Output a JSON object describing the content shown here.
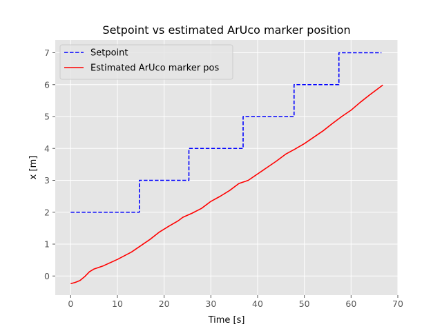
{
  "chart_data": {
    "type": "line",
    "title": "Setpoint vs estimated ArUco marker position",
    "xlabel": "Time [s]",
    "ylabel": "x [m]",
    "xlim": [
      -3.3,
      70
    ],
    "ylim": [
      -0.6,
      7.4
    ],
    "xticks": [
      0,
      10,
      20,
      30,
      40,
      50,
      60,
      70
    ],
    "yticks": [
      0,
      1,
      2,
      3,
      4,
      5,
      6,
      7
    ],
    "grid": true,
    "legend_position": "top-left",
    "series": [
      {
        "name": "Setpoint",
        "style": "dashed",
        "color": "#0000ff",
        "x": [
          0,
          14.7,
          14.7,
          25.3,
          25.3,
          36.9,
          36.9,
          47.8,
          47.8,
          57.4,
          57.4,
          66.5
        ],
        "y": [
          2,
          2,
          3,
          3,
          4,
          4,
          5,
          5,
          6,
          6,
          7,
          7
        ]
      },
      {
        "name": "Estimated ArUco marker pos",
        "style": "solid",
        "color": "#ff0000",
        "x": [
          0,
          1,
          2,
          3,
          4,
          5,
          7,
          10,
          13,
          15,
          17,
          19,
          21,
          23,
          24,
          26,
          28,
          30,
          32,
          34,
          36,
          38,
          40,
          42,
          44,
          46,
          48,
          50,
          52,
          54,
          56,
          58,
          60,
          62,
          64,
          66,
          66.8
        ],
        "y": [
          -0.24,
          -0.2,
          -0.14,
          -0.02,
          0.13,
          0.22,
          0.32,
          0.52,
          0.75,
          0.95,
          1.15,
          1.38,
          1.56,
          1.73,
          1.84,
          1.97,
          2.12,
          2.34,
          2.5,
          2.68,
          2.9,
          3.0,
          3.2,
          3.4,
          3.6,
          3.82,
          3.98,
          4.15,
          4.35,
          4.55,
          4.78,
          5.0,
          5.2,
          5.45,
          5.68,
          5.9,
          5.99
        ]
      }
    ]
  }
}
